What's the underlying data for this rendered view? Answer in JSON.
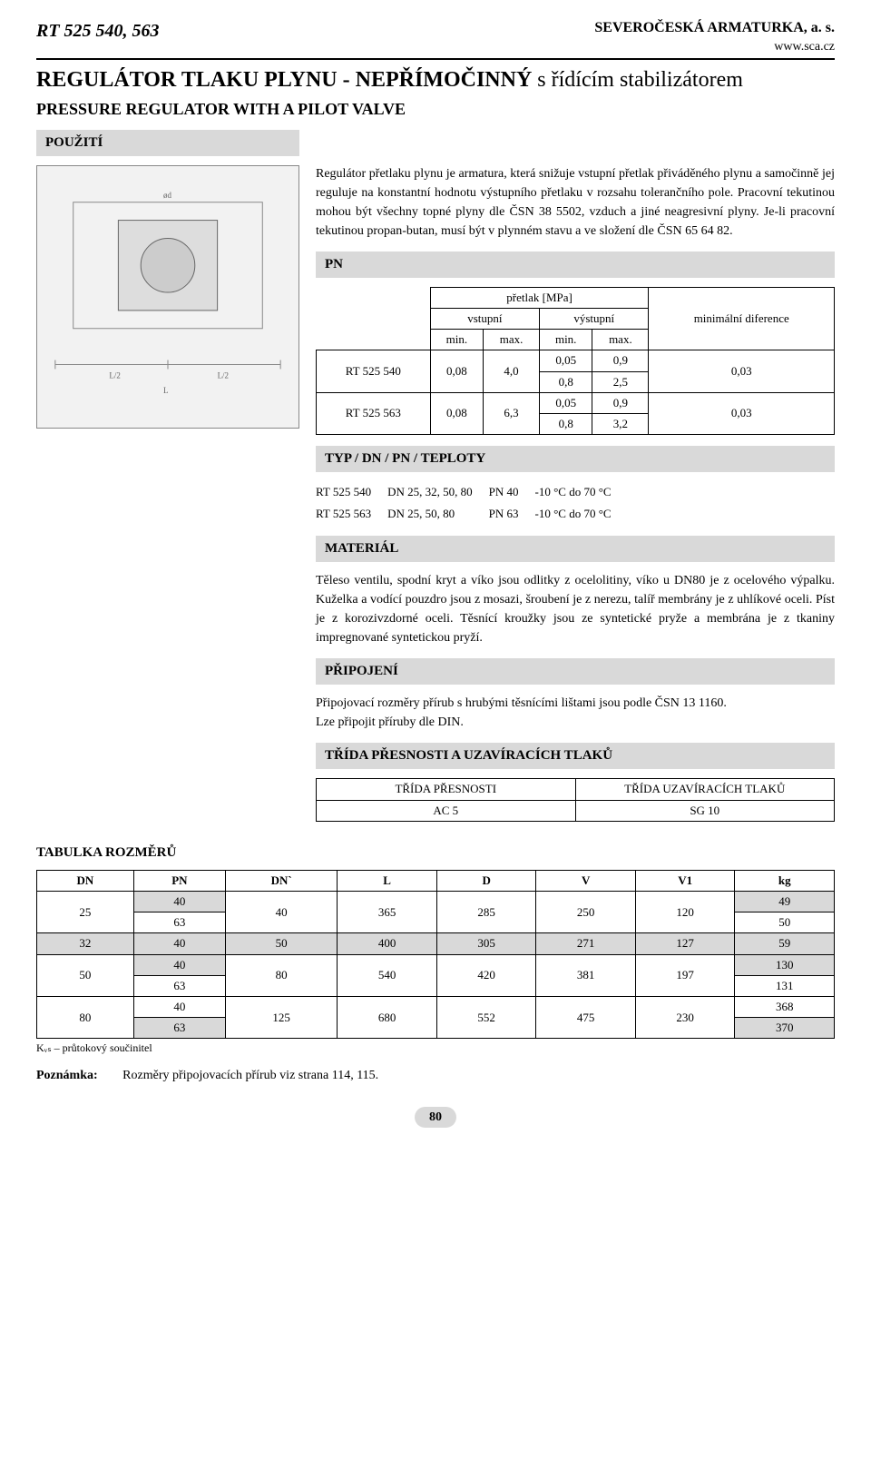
{
  "header": {
    "product_code": "RT 525 540, 563",
    "company": "SEVEROČESKÁ ARMATURKA, a. s.",
    "url": "www.sca.cz"
  },
  "title": {
    "cz": "REGULÁTOR TLAKU PLYNU - NEPŘÍMOČINNÝ",
    "cz_suffix": " s řídícím stabilizátorem",
    "en": "PRESSURE REGULATOR WITH A PILOT VALVE"
  },
  "sections": {
    "pouziti": {
      "heading": "POUŽITÍ",
      "text": "Regulátor přetlaku plynu je armatura, která snižuje vstupní přetlak přiváděného plynu a samočinně jej reguluje na konstantní hodnotu výstupního přetlaku v rozsahu tolerančního pole. Pracovní tekutinou mohou být všechny topné plyny dle ČSN 38 5502, vzduch a jiné neagresivní plyny. Je-li pracovní tekutinou propan-butan, musí být v plynném stavu a ve složení dle ČSN 65 64 82."
    },
    "pn": {
      "heading": "PN",
      "table": {
        "top_span": "přetlak [MPa]",
        "in_label": "vstupní",
        "out_label": "výstupní",
        "min_label": "min.",
        "max_label": "max.",
        "diff_label": "minimální diference",
        "rows": [
          {
            "name": "RT 525 540",
            "in_min": "0,08",
            "in_max": "4,0",
            "out": [
              [
                "0,05",
                "0,9"
              ],
              [
                "0,8",
                "2,5"
              ]
            ],
            "diff": "0,03"
          },
          {
            "name": "RT 525 563",
            "in_min": "0,08",
            "in_max": "6,3",
            "out": [
              [
                "0,05",
                "0,9"
              ],
              [
                "0,8",
                "3,2"
              ]
            ],
            "diff": "0,03"
          }
        ]
      }
    },
    "typ": {
      "heading": "TYP / DN / PN / TEPLOTY",
      "rows": [
        [
          "RT 525 540",
          "DN 25, 32, 50, 80",
          "PN 40",
          "-10 °C do 70 °C"
        ],
        [
          "RT 525 563",
          "DN 25, 50, 80",
          "PN 63",
          "-10 °C do 70 °C"
        ]
      ]
    },
    "material": {
      "heading": "MATERIÁL",
      "text": "Těleso ventilu, spodní kryt a víko jsou odlitky z ocelolitiny, víko u DN80 je z ocelového výpalku. Kuželka a vodící pouzdro jsou z mosazi, šroubení je z nerezu, talíř membrány je z uhlíkové oceli. Píst je z korozivzdorné oceli. Těsnící kroužky jsou ze syntetické pryže a membrána je z tkaniny impregnované syntetickou pryží."
    },
    "pripojeni": {
      "heading": "PŘIPOJENÍ",
      "text1": "Připojovací rozměry přírub s hrubými těsnícími lištami jsou podle ČSN 13 1160.",
      "text2": "Lze připojit příruby dle DIN."
    },
    "trida": {
      "heading": "TŘÍDA PŘESNOSTI A UZAVÍRACÍCH TLAKŮ",
      "col1_head": "TŘÍDA PŘESNOSTI",
      "col2_head": "TŘÍDA UZAVÍRACÍCH TLAKŮ",
      "col1_val": "AC 5",
      "col2_val": "SG 10"
    }
  },
  "dimensions": {
    "heading": "TABULKA ROZMĚRŮ",
    "columns": [
      "DN",
      "PN",
      "DN`",
      "L",
      "D",
      "V",
      "V1",
      "kg"
    ],
    "rows": [
      {
        "dn": "25",
        "gray_first": true,
        "pn": [
          "40",
          "63"
        ],
        "dnp": "40",
        "L": "365",
        "D": "285",
        "V": "250",
        "V1": "120",
        "kg": [
          "49",
          "50"
        ]
      },
      {
        "dn": "32",
        "gray_first": false,
        "pn": [
          "40"
        ],
        "dnp": "50",
        "L": "400",
        "D": "305",
        "V": "271",
        "V1": "127",
        "kg": [
          "59"
        ],
        "full_gray": true
      },
      {
        "dn": "50",
        "gray_first": true,
        "pn": [
          "40",
          "63"
        ],
        "dnp": "80",
        "L": "540",
        "D": "420",
        "V": "381",
        "V1": "197",
        "kg": [
          "130",
          "131"
        ]
      },
      {
        "dn": "80",
        "gray_first": false,
        "pn": [
          "40",
          "63"
        ],
        "dnp": "125",
        "L": "680",
        "D": "552",
        "V": "475",
        "V1": "230",
        "kg": [
          "368",
          "370"
        ]
      }
    ],
    "kvs": "Kᵥₛ – průtokový součinitel"
  },
  "note": {
    "label": "Poznámka:",
    "text": "Rozměry připojovacích přírub viz strana 114, 115."
  },
  "page": "80"
}
